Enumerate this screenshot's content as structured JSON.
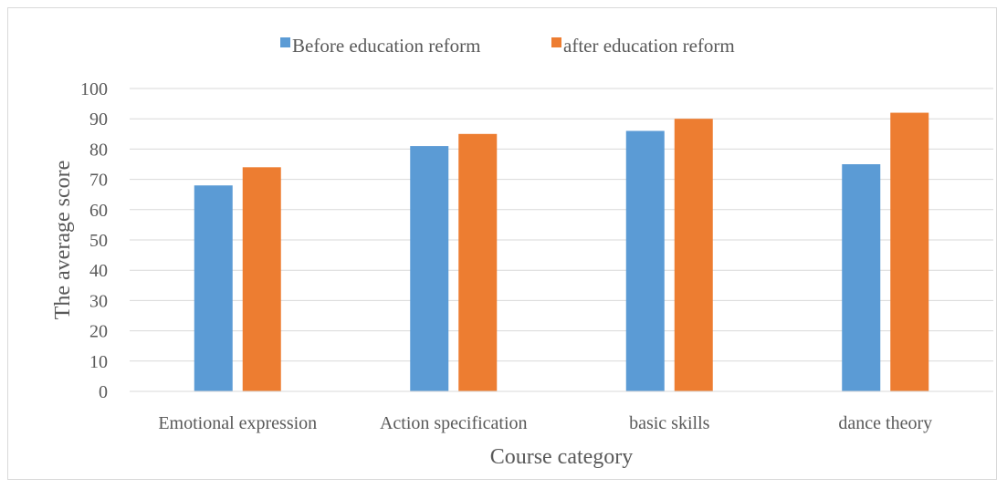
{
  "chart_data": {
    "type": "bar",
    "categories": [
      "Emotional expression",
      "Action specification",
      "basic skills",
      "dance theory"
    ],
    "series": [
      {
        "name": "Before education reform",
        "color": "#5b9bd5",
        "values": [
          68,
          81,
          86,
          75
        ]
      },
      {
        "name": "after education reform",
        "color": "#ed7d31",
        "values": [
          74,
          85,
          90,
          92
        ]
      }
    ],
    "title": "",
    "xlabel": "Course category",
    "ylabel": "The average score",
    "ylim": [
      0,
      100
    ],
    "yticks": [
      "0",
      "10",
      "20",
      "30",
      "40",
      "50",
      "60",
      "70",
      "80",
      "90",
      "100"
    ],
    "grid": true,
    "legend": "top"
  }
}
